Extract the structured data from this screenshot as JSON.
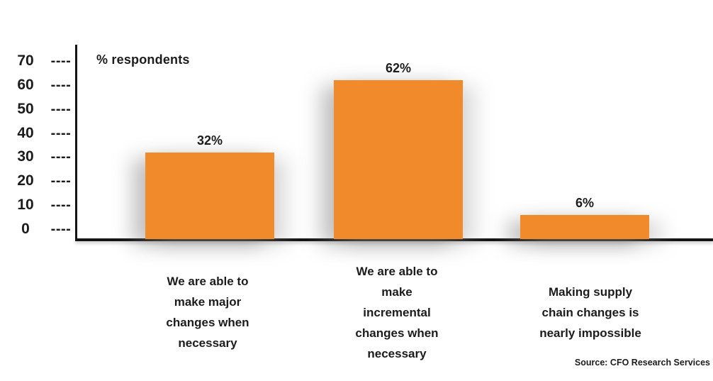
{
  "chart_data": {
    "type": "bar",
    "title": "% respondents",
    "categories": [
      "We are able to make major changes when necessary",
      "We are able to make incremental changes when necessary",
      "Making supply chain changes is nearly impossible"
    ],
    "category_lines": [
      "We are able to\nmake major\nchanges when\nnecessary",
      "We are able to\nmake\nincremental\nchanges when\nnecessary",
      "Making supply\nchain changes is\nnearly impossible"
    ],
    "values": [
      32,
      62,
      6
    ],
    "value_labels": [
      "32%",
      "62%",
      "6%"
    ],
    "xlabel": "",
    "ylabel": "% respondents",
    "ylim": [
      0,
      70
    ],
    "yticks": [
      70,
      60,
      50,
      40,
      30,
      20,
      10,
      0
    ],
    "tick_dashes": "----",
    "grid": false,
    "legend": false,
    "bar_color": "#F08A2B",
    "axis_color": "#141414",
    "source": "Source: CFO Research Services"
  }
}
